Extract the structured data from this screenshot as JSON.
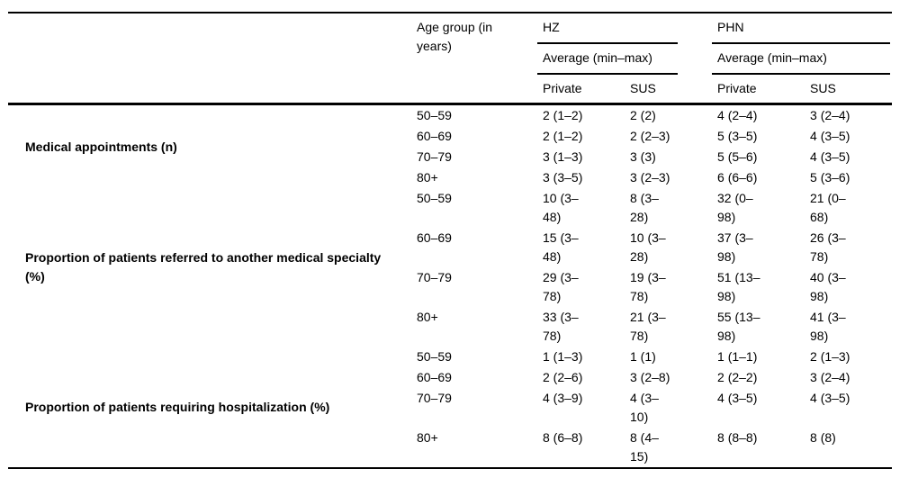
{
  "colors": {
    "background": "#ffffff",
    "text": "#000000",
    "rule": "#000000"
  },
  "table": {
    "header": {
      "corner": "",
      "age_column": "Age group (in years)",
      "group_hz": "HZ",
      "group_phn": "PHN",
      "hz_subheader": "Average (min–max)",
      "phn_subheader": "Average (min–max)",
      "columns": [
        "Private",
        "SUS",
        "Private",
        "SUS"
      ]
    },
    "sections": [
      {
        "label": "Medical appointments (n)",
        "rows": [
          {
            "age": "50–59",
            "values": [
              "2 (1–2)",
              "2 (2)",
              "4 (2–4)",
              "3 (2–4)"
            ]
          },
          {
            "age": "60–69",
            "values": [
              "2 (1–2)",
              "2 (2–3)",
              "5 (3–5)",
              "4 (3–5)"
            ]
          },
          {
            "age": "70–79",
            "values": [
              "3 (1–3)",
              "3 (3)",
              "5 (5–6)",
              "4 (3–5)"
            ]
          },
          {
            "age": "80+",
            "values": [
              "3 (3–5)",
              "3 (2–3)",
              "6 (6–6)",
              "5 (3–6)"
            ]
          }
        ]
      },
      {
        "label": "Proportion of patients referred to another medical specialty (%)",
        "rows": [
          {
            "age": "50–59",
            "values": [
              "10 (3–48)",
              "8 (3–28)",
              "32 (0–98)",
              "21 (0–68)"
            ]
          },
          {
            "age": "60–69",
            "values": [
              "15 (3–48)",
              "10 (3–28)",
              "37 (3–98)",
              "26 (3–78)"
            ]
          },
          {
            "age": "70–79",
            "values": [
              "29 (3–78)",
              "19 (3–78)",
              "51 (13–98)",
              "40 (3–98)"
            ]
          },
          {
            "age": "80+",
            "values": [
              "33 (3–78)",
              "21 (3–78)",
              "55 (13–98)",
              "41 (3–98)"
            ]
          }
        ]
      },
      {
        "label": "Proportion of patients requiring hospitalization (%)",
        "rows": [
          {
            "age": "50–59",
            "values": [
              "1 (1–3)",
              "1 (1)",
              "1 (1–1)",
              "2 (1–3)"
            ]
          },
          {
            "age": "60–69",
            "values": [
              "2 (2–6)",
              "3 (2–8)",
              "2 (2–2)",
              "3 (2–4)"
            ]
          },
          {
            "age": "70–79",
            "values": [
              "4 (3–9)",
              "4 (3–10)",
              "4 (3–5)",
              "4 (3–5)"
            ]
          },
          {
            "age": "80+",
            "values": [
              "8 (6–8)",
              "8 (4–15)",
              "8 (8–8)",
              "8 (8)"
            ]
          }
        ]
      }
    ]
  }
}
